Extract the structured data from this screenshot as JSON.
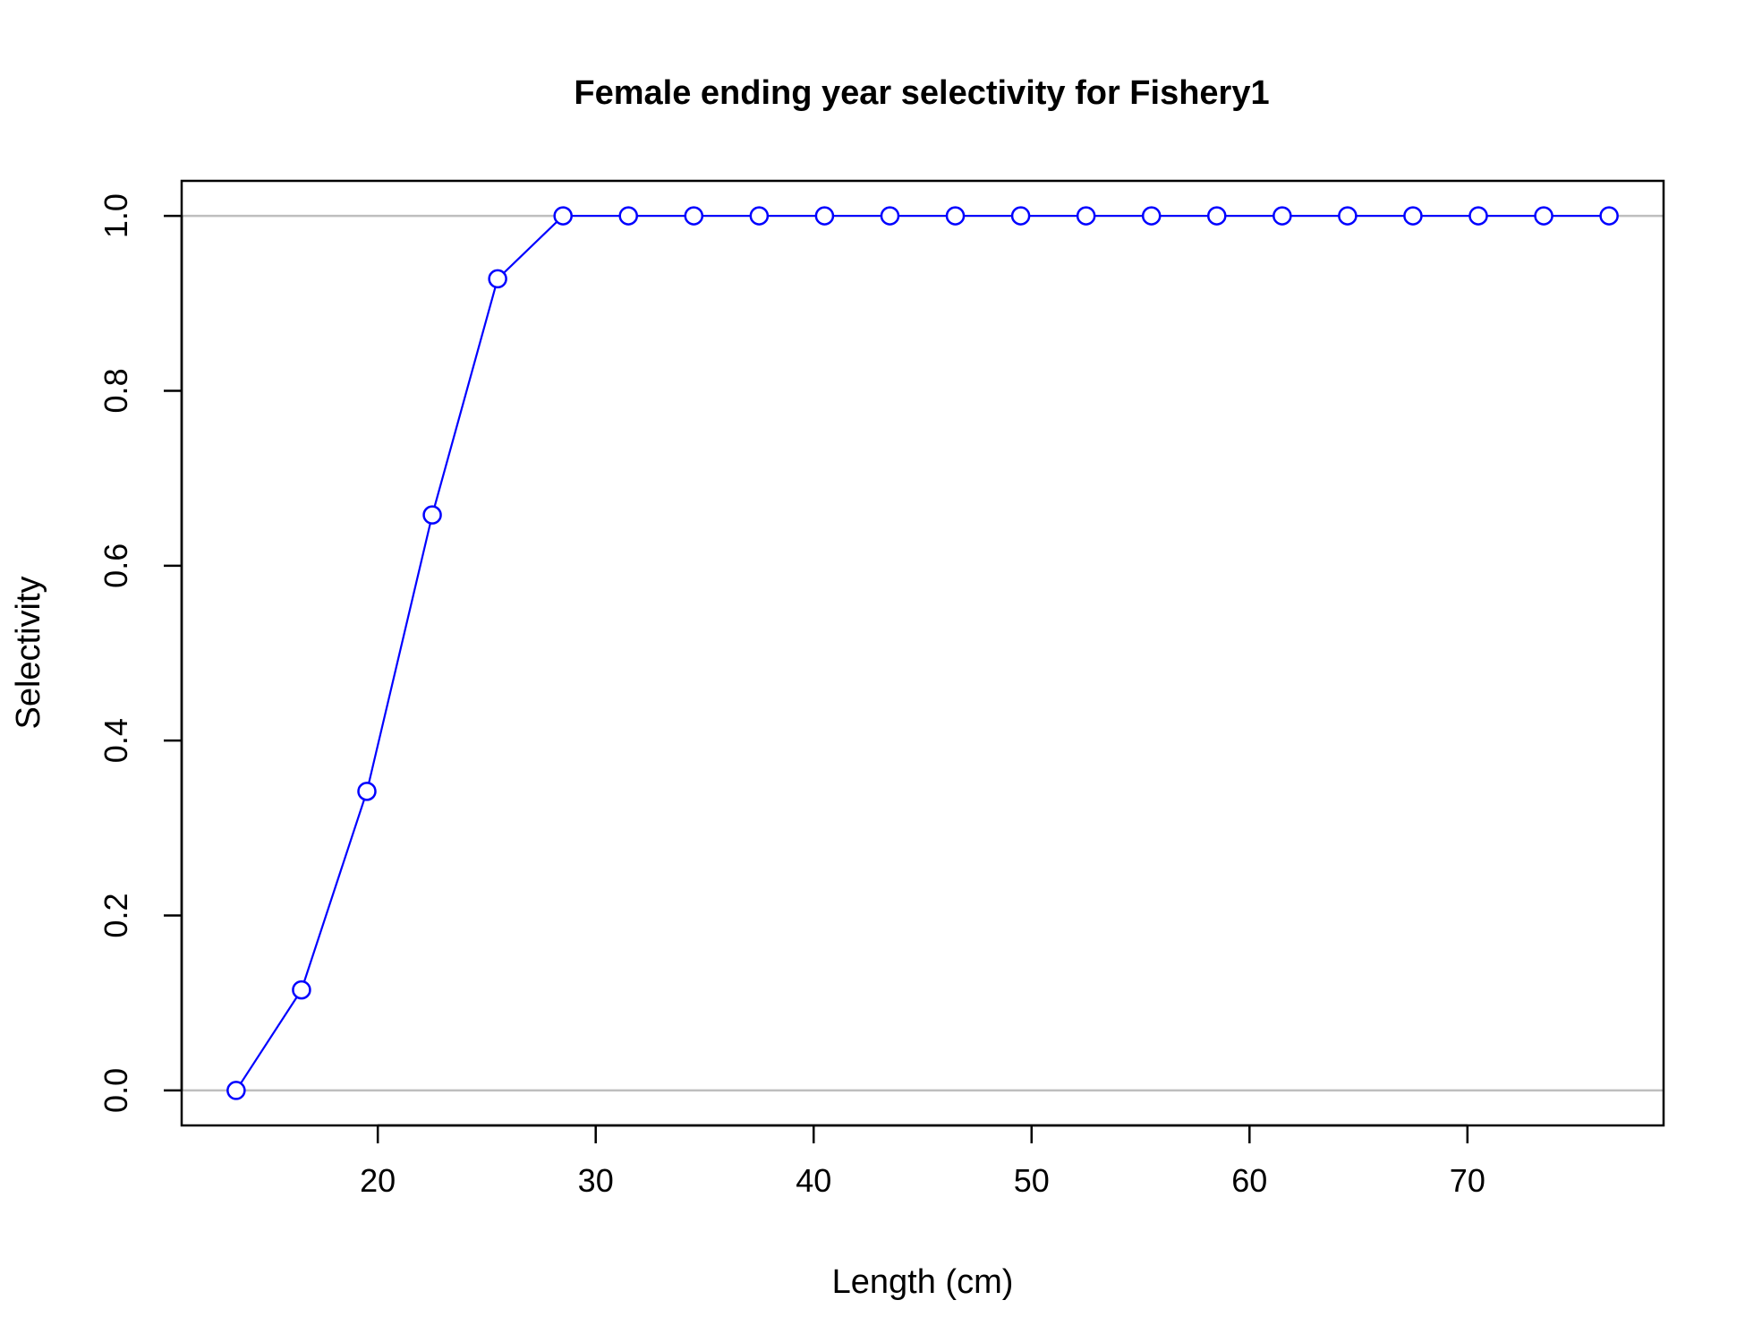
{
  "chart_data": {
    "type": "line",
    "title": "Female ending year selectivity for Fishery1",
    "xlabel": "Length (cm)",
    "ylabel": "Selectivity",
    "xlim": [
      11,
      79
    ],
    "ylim": [
      -0.04,
      1.04
    ],
    "x_ticks": [
      20,
      30,
      40,
      50,
      60,
      70
    ],
    "x_tick_labels": [
      "20",
      "30",
      "40",
      "50",
      "60",
      "70"
    ],
    "y_ticks": [
      0.0,
      0.2,
      0.4,
      0.6,
      0.8,
      1.0
    ],
    "y_tick_labels": [
      "0.0",
      "0.2",
      "0.4",
      "0.6",
      "0.8",
      "1.0"
    ],
    "reference_lines": [
      0,
      1
    ],
    "reference_line_color": "#bebebe",
    "series": [
      {
        "color": "#0000ff",
        "marker": "open-circle",
        "x": [
          13.5,
          16.5,
          19.5,
          22.5,
          25.5,
          28.5,
          31.5,
          34.5,
          37.5,
          40.5,
          43.5,
          46.5,
          49.5,
          52.5,
          55.5,
          58.5,
          61.5,
          64.5,
          67.5,
          70.5,
          73.5,
          76.5
        ],
        "y": [
          0.0,
          0.115,
          0.342,
          0.658,
          0.928,
          1.0,
          1.0,
          1.0,
          1.0,
          1.0,
          1.0,
          1.0,
          1.0,
          1.0,
          1.0,
          1.0,
          1.0,
          1.0,
          1.0,
          1.0,
          1.0,
          1.0
        ]
      }
    ]
  }
}
